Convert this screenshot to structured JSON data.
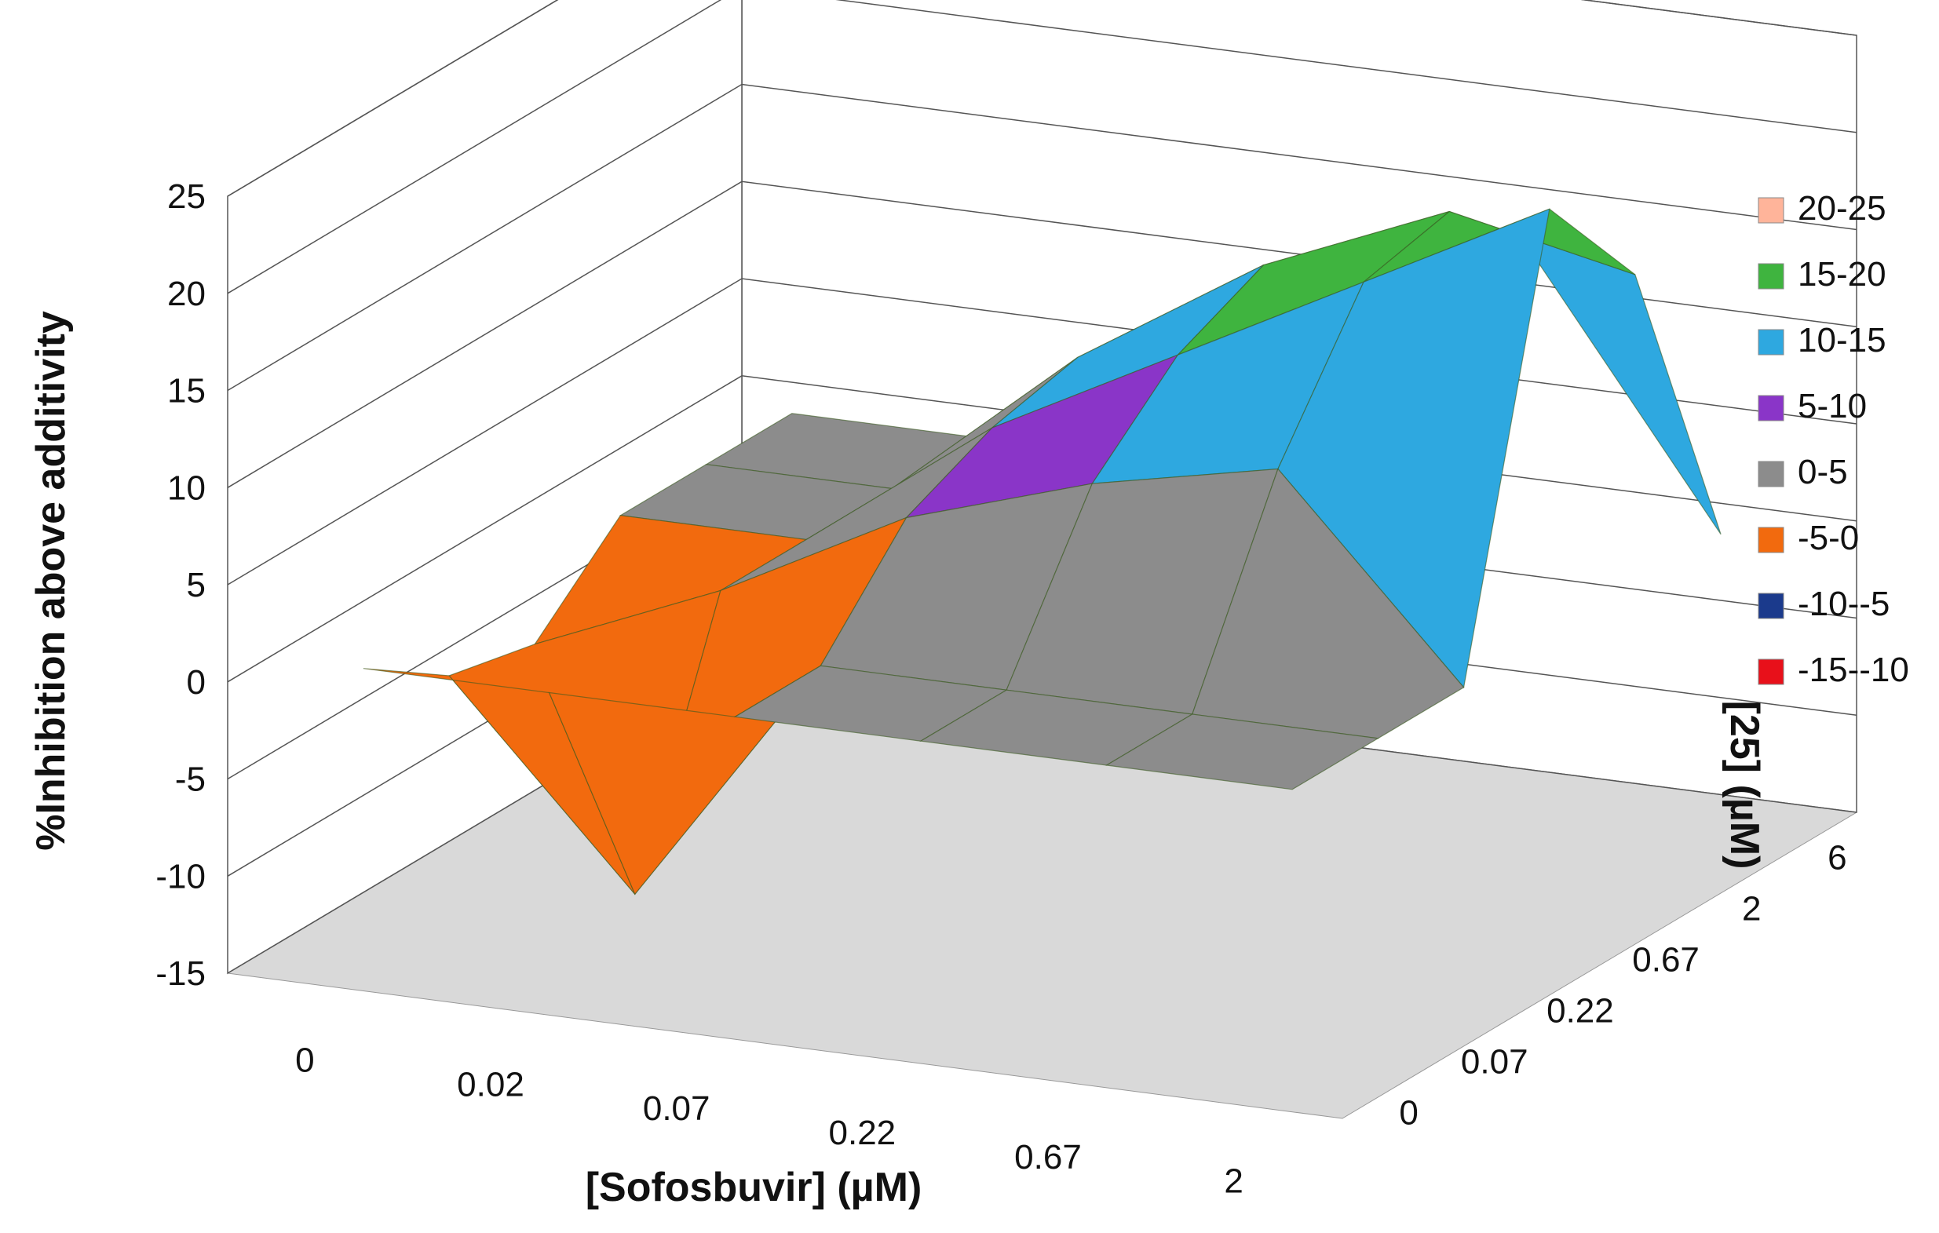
{
  "chart_data": {
    "type": "surface",
    "title": "",
    "zlabel": "%Inhibition above additivity",
    "xlabel": "[Sofosbuvir] (µM)",
    "ylabel": "[25] (µM)",
    "x_categories": [
      "0",
      "0.02",
      "0.07",
      "0.22",
      "0.67",
      "2"
    ],
    "y_categories": [
      "0",
      "0.07",
      "0.22",
      "0.67",
      "2",
      "6"
    ],
    "z_ticks": [
      "25",
      "20",
      "15",
      "10",
      "5",
      "0",
      "-5",
      "-10",
      "-15"
    ],
    "zlim": [
      -15,
      25
    ],
    "z_grid": true,
    "legend_position": "right",
    "values": [
      [
        0,
        0,
        0,
        0,
        0,
        0
      ],
      [
        -3,
        -13,
        0,
        0,
        0,
        0
      ],
      [
        -4,
        0,
        5,
        8,
        10,
        0
      ],
      [
        0,
        0,
        7,
        12,
        17,
        22
      ],
      [
        0,
        0,
        8,
        14,
        18,
        16
      ],
      [
        0,
        0,
        6,
        10,
        13,
        0
      ]
    ],
    "legend": [
      {
        "label": "20-25",
        "color": "#FFB49A"
      },
      {
        "label": "15-20",
        "color": "#3FB43F"
      },
      {
        "label": "10-15",
        "color": "#2EA8E0"
      },
      {
        "label": "5-10",
        "color": "#8A35C8"
      },
      {
        "label": "0-5",
        "color": "#8C8C8C"
      },
      {
        "label": "-5-0",
        "color": "#F26A0E"
      },
      {
        "label": "-10--5",
        "color": "#1B3A8C"
      },
      {
        "label": "-15--10",
        "color": "#E8101A"
      }
    ]
  }
}
